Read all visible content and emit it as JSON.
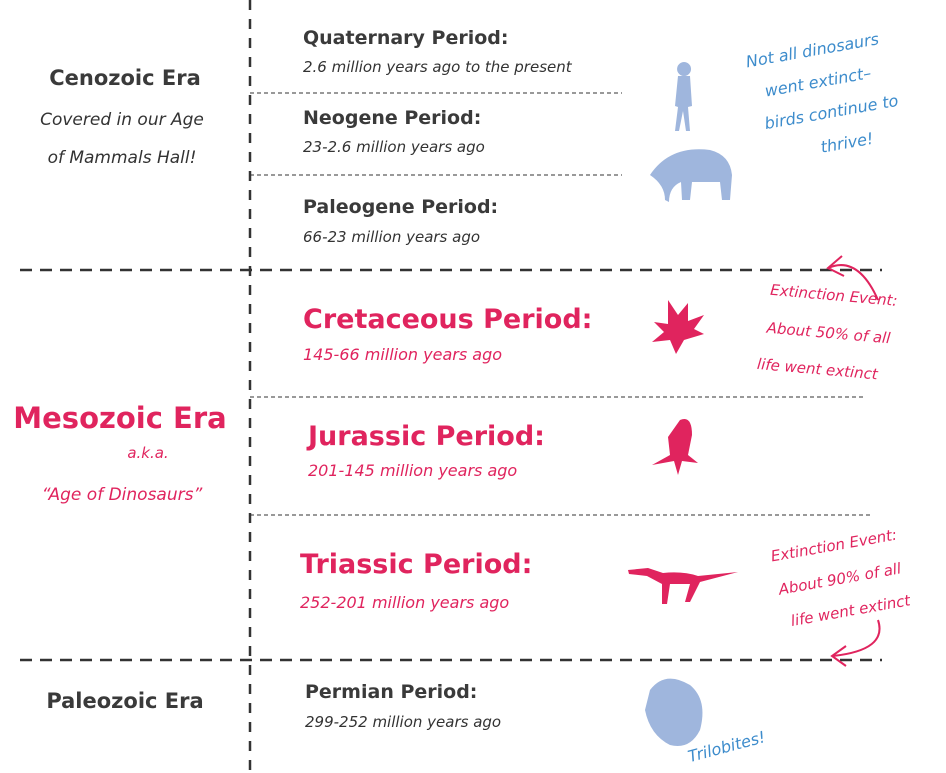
{
  "eras": [
    {
      "name": "Cenozoic Era",
      "notes": [
        "Covered in our Age",
        "of Mammals Hall!"
      ]
    },
    {
      "name": "Mesozoic Era",
      "notes": [
        "a.k.a.",
        "“Age of Dinosaurs”"
      ]
    },
    {
      "name": "Paleozoic Era",
      "notes": []
    }
  ],
  "periods": [
    {
      "name": "Quaternary Period:",
      "range": "2.6 million years ago to the present"
    },
    {
      "name": "Neogene Period:",
      "range": "23-2.6 million years ago"
    },
    {
      "name": "Paleogene Period:",
      "range": "66-23 million years ago"
    },
    {
      "name": "Cretaceous Period:",
      "range": "145-66 million years ago"
    },
    {
      "name": "Jurassic Period:",
      "range": "201-145 million years ago"
    },
    {
      "name": "Triassic Period:",
      "range": "252-201 million years ago"
    },
    {
      "name": "Permian Period:",
      "range": "299-252 million years ago"
    }
  ],
  "annotations": {
    "birds": [
      "Not all dinosaurs",
      "went extinct–",
      "birds continue to",
      "thrive!"
    ],
    "extinction_1": [
      "Extinction Event:",
      "About 50% of all",
      "life went extinct"
    ],
    "extinction_2": [
      "Extinction Event:",
      "About 90% of all",
      "life went extinct"
    ],
    "trilobites": "Trilobites!"
  }
}
